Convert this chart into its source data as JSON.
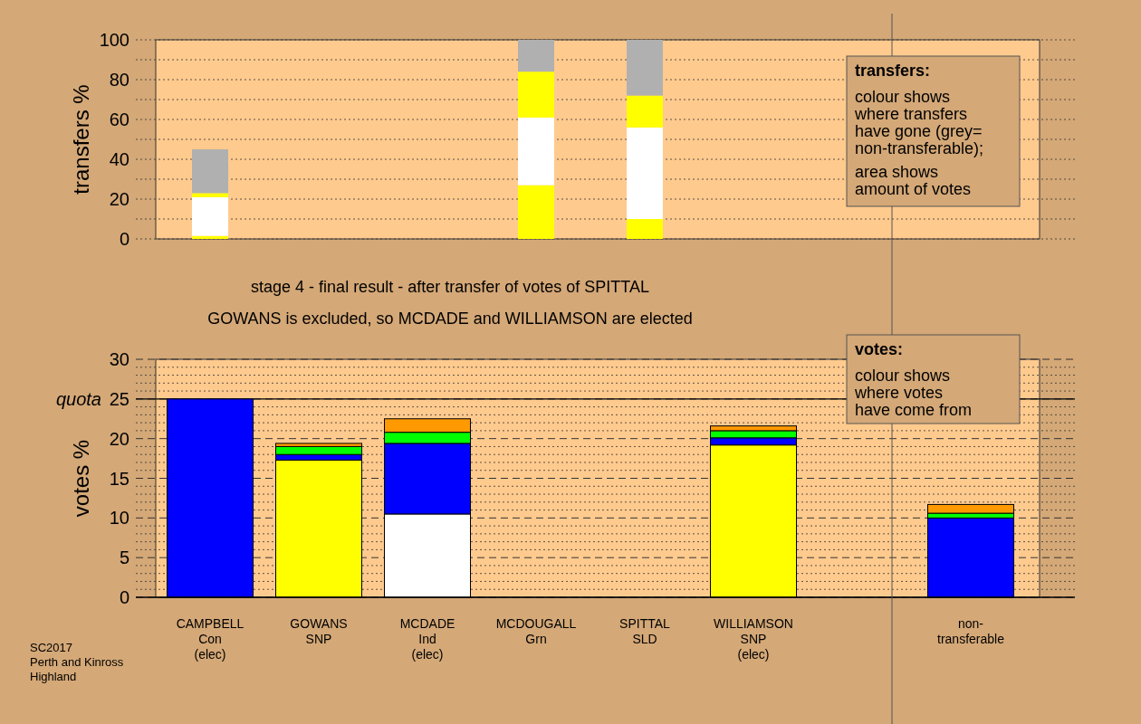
{
  "chart_data": [
    {
      "type": "bar",
      "stacked": true,
      "ylabel": "transfers %",
      "categories": [
        null,
        null,
        null,
        null,
        null,
        null,
        null,
        null
      ],
      "tick_labels": "y",
      "ylim": [
        0,
        100
      ],
      "yticks": [
        0,
        {
          "value": 10,
          "label": null
        },
        20,
        {
          "value": 30,
          "label": null
        },
        40,
        {
          "value": 50,
          "label": null
        },
        60,
        {
          "value": 70,
          "label": null
        },
        80,
        {
          "value": 90,
          "label": null
        },
        100
      ],
      "grid": "y",
      "series": [
        {
          "color": "#ffff00",
          "values": [
            1.5,
            null,
            null,
            27,
            10,
            null,
            null,
            null
          ]
        },
        {
          "color": "#ffffff",
          "values": [
            19.5,
            null,
            null,
            34,
            46,
            null,
            null,
            null
          ]
        },
        {
          "color": "#ffff00",
          "values": [
            2,
            null,
            null,
            23,
            16,
            null,
            null,
            null
          ]
        },
        {
          "color": "#b0b0b0",
          "values": [
            22,
            null,
            null,
            16,
            28,
            null,
            null,
            null
          ]
        }
      ],
      "annotations": [
        "transfers:",
        "colour shows\nwhere transfers\nhave gone (grey=\nnon-transferable);",
        "area shows\namount of votes"
      ]
    },
    {
      "type": "bar",
      "stacked": true,
      "title": "stage 4 - final result - after transfer of votes of SPITTAL",
      "subtitle": "GOWANS is excluded, so MCDADE and WILLIAMSON are elected",
      "ylabel": "votes %",
      "categories": [
        "CAMPBELL\nCon\n(elec)",
        "GOWANS\nSNP",
        "MCDADE\nInd\n(elec)",
        "MCDOUGALL\nGrn",
        "SPITTAL\nSLD",
        "WILLIAMSON\nSNP\n(elec)",
        null,
        "non-\ntransferable"
      ],
      "ylim": [
        0,
        30
      ],
      "yticks": [
        0,
        {
          "value": 1,
          "label": null
        },
        {
          "value": 2,
          "label": null
        },
        {
          "value": 3,
          "label": null
        },
        {
          "value": 4,
          "label": null
        },
        5,
        {
          "value": 6,
          "label": null
        },
        {
          "value": 7,
          "label": null
        },
        {
          "value": 8,
          "label": null
        },
        {
          "value": 9,
          "label": null
        },
        10,
        {
          "value": 11,
          "label": null
        },
        {
          "value": 12,
          "label": null
        },
        {
          "value": 13,
          "label": null
        },
        {
          "value": 14,
          "label": null
        },
        15,
        {
          "value": 16,
          "label": null
        },
        {
          "value": 17,
          "label": null
        },
        {
          "value": 18,
          "label": null
        },
        {
          "value": 19,
          "label": null
        },
        20,
        {
          "value": 21,
          "label": null
        },
        {
          "value": 22,
          "label": null
        },
        {
          "value": 23,
          "label": null
        },
        {
          "value": 24,
          "label": null
        },
        25,
        {
          "value": 26,
          "label": null
        },
        {
          "value": 27,
          "label": null
        },
        {
          "value": 28,
          "label": null
        },
        {
          "value": 29,
          "label": null
        },
        30
      ],
      "grid": "y",
      "ref_lines": [
        {
          "axis": "y",
          "value": 25,
          "label": "quota",
          "color": "#000000"
        }
      ],
      "series": [
        {
          "colors": [
            "#0000ff",
            "#ffff00",
            "#ffffff",
            "#00ff00",
            "#ff9900",
            "#ffff00",
            null,
            null
          ],
          "values": [
            25,
            17.3,
            10.5,
            0,
            0,
            19.2,
            null,
            null
          ]
        },
        {
          "color": "#0000ff",
          "values": [
            null,
            0.7,
            8.9,
            null,
            null,
            0.9,
            null,
            10.0
          ]
        },
        {
          "color": "#00ff00",
          "values": [
            null,
            1.0,
            1.4,
            null,
            null,
            0.9,
            null,
            0.6
          ]
        },
        {
          "color": "#ff9900",
          "values": [
            null,
            0.4,
            1.7,
            null,
            null,
            0.6,
            null,
            1.1
          ]
        }
      ],
      "annotations": [
        "votes:",
        "colour shows\nwhere votes\nhave come from",
        "SC2017\nPerth and Kinross\nHighland"
      ]
    }
  ]
}
